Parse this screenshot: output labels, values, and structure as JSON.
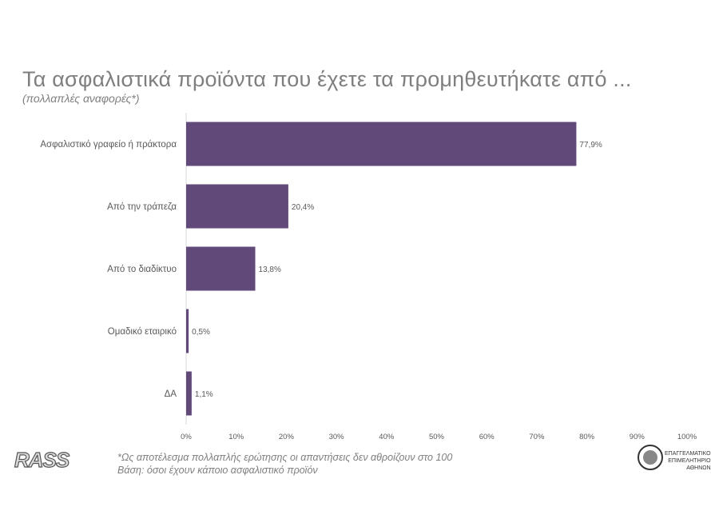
{
  "chart_data": {
    "type": "bar",
    "orientation": "horizontal",
    "title": "Τα ασφαλιστικά προϊόντα που έχετε τα προμηθευτήκατε από ...",
    "subtitle": "(πολλαπλές αναφορές*)",
    "categories": [
      "Ασφαλιστικό γραφείο ή πράκτορα",
      "Από την τράπεζα",
      "Από το διαδίκτυο",
      "Ομαδικό εταιρικό",
      "ΔΑ"
    ],
    "values": [
      77.9,
      20.4,
      13.8,
      0.5,
      1.1
    ],
    "data_labels": [
      "77,9%",
      "20,4%",
      "13,8%",
      "0,5%",
      "1,1%"
    ],
    "xlim": [
      0,
      100
    ],
    "x_ticks": [
      "0%",
      "10%",
      "20%",
      "30%",
      "40%",
      "50%",
      "60%",
      "70%",
      "80%",
      "90%",
      "100%"
    ],
    "grid": false,
    "bar_color": "#614a7a"
  },
  "footer": {
    "note1": "*Ως αποτέλεσμα πολλαπλής ερώτησης οι απαντήσεις δεν αθροίζουν στο 100",
    "note2": "Βάση: όσοι έχουν κάποιο ασφαλιστικό προϊόν",
    "rass_logo": "RASS",
    "chamber_logo": [
      "ΕΠΑΓΓΕΛΜΑΤΙΚΟ",
      "ΕΠΙΜΕΛΗΤΗΡΙΟ",
      "ΑΘΗΝΩΝ"
    ]
  }
}
